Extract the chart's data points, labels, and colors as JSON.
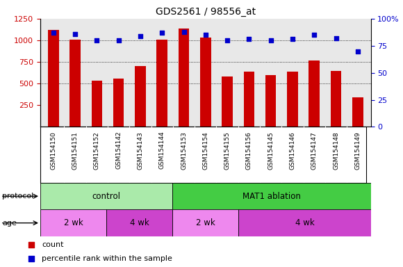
{
  "title": "GDS2561 / 98556_at",
  "samples": [
    "GSM154150",
    "GSM154151",
    "GSM154152",
    "GSM154142",
    "GSM154143",
    "GSM154144",
    "GSM154153",
    "GSM154154",
    "GSM154155",
    "GSM154156",
    "GSM154145",
    "GSM154146",
    "GSM154147",
    "GSM154148",
    "GSM154149"
  ],
  "counts": [
    1120,
    1005,
    535,
    560,
    700,
    1010,
    1140,
    1030,
    580,
    640,
    595,
    640,
    770,
    650,
    340
  ],
  "percentile_ranks": [
    87,
    86,
    80,
    80,
    84,
    87,
    88,
    85,
    80,
    81,
    80,
    81,
    85,
    82,
    70
  ],
  "bar_color": "#cc0000",
  "dot_color": "#0000cc",
  "ylim_left": [
    0,
    1250
  ],
  "ylim_right": [
    0,
    100
  ],
  "yticks_left": [
    250,
    500,
    750,
    1000,
    1250
  ],
  "yticks_right": [
    0,
    25,
    50,
    75,
    100
  ],
  "grid_values": [
    500,
    750,
    1000
  ],
  "protocol_groups": [
    {
      "label": "control",
      "start": 0,
      "end": 6,
      "color": "#aaeaaa"
    },
    {
      "label": "MAT1 ablation",
      "start": 6,
      "end": 15,
      "color": "#44cc44"
    }
  ],
  "age_groups": [
    {
      "label": "2 wk",
      "start": 0,
      "end": 3,
      "color": "#ee88ee"
    },
    {
      "label": "4 wk",
      "start": 3,
      "end": 6,
      "color": "#cc44cc"
    },
    {
      "label": "2 wk",
      "start": 6,
      "end": 9,
      "color": "#ee88ee"
    },
    {
      "label": "4 wk",
      "start": 9,
      "end": 15,
      "color": "#cc44cc"
    }
  ],
  "legend_count_label": "count",
  "legend_pct_label": "percentile rank within the sample",
  "bar_width": 0.5,
  "xticklabel_bg": "#d0d0d0",
  "plot_area_bg": "#e8e8e8",
  "left_tick_color": "#cc0000",
  "right_tick_color": "#0000cc"
}
